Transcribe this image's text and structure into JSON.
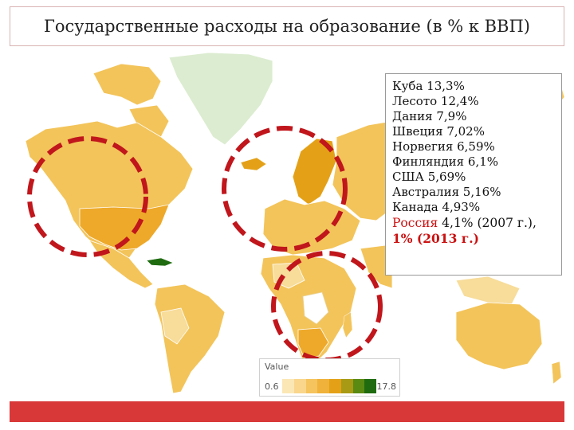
{
  "title": "Государственные расходы на образование (в % к ВВП)",
  "info": {
    "lines": [
      "Куба 13,3%",
      "Лесото 12,4%",
      "Дания 7,9%",
      "Швеция 7,02%",
      "Норвегия 6,59%",
      "Финляндия 6,1%",
      "США 5,69%",
      "Австралия 5,16%",
      "Канада 4,93%"
    ],
    "russia_name": "Россия",
    "russia_value_2007": " 4,1% (2007 г.), ",
    "russia_value_2013": "1% (2013 г.)"
  },
  "legend": {
    "title": "Value",
    "min": "0.6",
    "max": "17.8",
    "colors": [
      "#fbe7b5",
      "#f9d68c",
      "#f5c45e",
      "#f0b23a",
      "#e4a117",
      "#a89a14",
      "#5a8a12",
      "#1f6b10"
    ]
  },
  "colors": {
    "land": "#f3c45a",
    "land_light": "#f7dc9a",
    "land_dark": "#eea92a",
    "no_data": "#dcecd0",
    "circle": "#c0161c",
    "bottom_bar": "#d93838",
    "russia_text": "#cc1111"
  }
}
